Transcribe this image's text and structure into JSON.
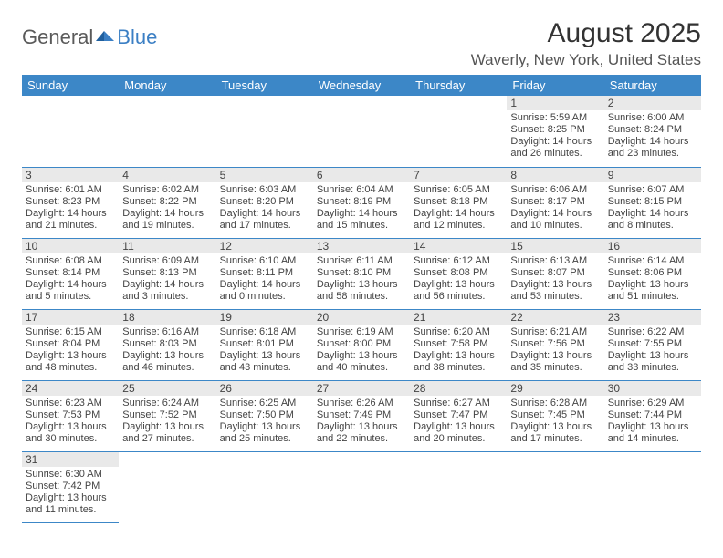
{
  "logo": {
    "text1": "General",
    "text2": "Blue",
    "text1_color": "#5a5a5a",
    "text2_color": "#3b7fc4"
  },
  "title": "August 2025",
  "location": "Waverly, New York, United States",
  "header_bg": "#3c87c7",
  "daynum_bg": "#e9e9e9",
  "border_color": "#3c87c7",
  "day_headers": [
    "Sunday",
    "Monday",
    "Tuesday",
    "Wednesday",
    "Thursday",
    "Friday",
    "Saturday"
  ],
  "weeks": [
    [
      null,
      null,
      null,
      null,
      null,
      {
        "n": "1",
        "sr": "Sunrise: 5:59 AM",
        "ss": "Sunset: 8:25 PM",
        "dl1": "Daylight: 14 hours",
        "dl2": "and 26 minutes."
      },
      {
        "n": "2",
        "sr": "Sunrise: 6:00 AM",
        "ss": "Sunset: 8:24 PM",
        "dl1": "Daylight: 14 hours",
        "dl2": "and 23 minutes."
      }
    ],
    [
      {
        "n": "3",
        "sr": "Sunrise: 6:01 AM",
        "ss": "Sunset: 8:23 PM",
        "dl1": "Daylight: 14 hours",
        "dl2": "and 21 minutes."
      },
      {
        "n": "4",
        "sr": "Sunrise: 6:02 AM",
        "ss": "Sunset: 8:22 PM",
        "dl1": "Daylight: 14 hours",
        "dl2": "and 19 minutes."
      },
      {
        "n": "5",
        "sr": "Sunrise: 6:03 AM",
        "ss": "Sunset: 8:20 PM",
        "dl1": "Daylight: 14 hours",
        "dl2": "and 17 minutes."
      },
      {
        "n": "6",
        "sr": "Sunrise: 6:04 AM",
        "ss": "Sunset: 8:19 PM",
        "dl1": "Daylight: 14 hours",
        "dl2": "and 15 minutes."
      },
      {
        "n": "7",
        "sr": "Sunrise: 6:05 AM",
        "ss": "Sunset: 8:18 PM",
        "dl1": "Daylight: 14 hours",
        "dl2": "and 12 minutes."
      },
      {
        "n": "8",
        "sr": "Sunrise: 6:06 AM",
        "ss": "Sunset: 8:17 PM",
        "dl1": "Daylight: 14 hours",
        "dl2": "and 10 minutes."
      },
      {
        "n": "9",
        "sr": "Sunrise: 6:07 AM",
        "ss": "Sunset: 8:15 PM",
        "dl1": "Daylight: 14 hours",
        "dl2": "and 8 minutes."
      }
    ],
    [
      {
        "n": "10",
        "sr": "Sunrise: 6:08 AM",
        "ss": "Sunset: 8:14 PM",
        "dl1": "Daylight: 14 hours",
        "dl2": "and 5 minutes."
      },
      {
        "n": "11",
        "sr": "Sunrise: 6:09 AM",
        "ss": "Sunset: 8:13 PM",
        "dl1": "Daylight: 14 hours",
        "dl2": "and 3 minutes."
      },
      {
        "n": "12",
        "sr": "Sunrise: 6:10 AM",
        "ss": "Sunset: 8:11 PM",
        "dl1": "Daylight: 14 hours",
        "dl2": "and 0 minutes."
      },
      {
        "n": "13",
        "sr": "Sunrise: 6:11 AM",
        "ss": "Sunset: 8:10 PM",
        "dl1": "Daylight: 13 hours",
        "dl2": "and 58 minutes."
      },
      {
        "n": "14",
        "sr": "Sunrise: 6:12 AM",
        "ss": "Sunset: 8:08 PM",
        "dl1": "Daylight: 13 hours",
        "dl2": "and 56 minutes."
      },
      {
        "n": "15",
        "sr": "Sunrise: 6:13 AM",
        "ss": "Sunset: 8:07 PM",
        "dl1": "Daylight: 13 hours",
        "dl2": "and 53 minutes."
      },
      {
        "n": "16",
        "sr": "Sunrise: 6:14 AM",
        "ss": "Sunset: 8:06 PM",
        "dl1": "Daylight: 13 hours",
        "dl2": "and 51 minutes."
      }
    ],
    [
      {
        "n": "17",
        "sr": "Sunrise: 6:15 AM",
        "ss": "Sunset: 8:04 PM",
        "dl1": "Daylight: 13 hours",
        "dl2": "and 48 minutes."
      },
      {
        "n": "18",
        "sr": "Sunrise: 6:16 AM",
        "ss": "Sunset: 8:03 PM",
        "dl1": "Daylight: 13 hours",
        "dl2": "and 46 minutes."
      },
      {
        "n": "19",
        "sr": "Sunrise: 6:18 AM",
        "ss": "Sunset: 8:01 PM",
        "dl1": "Daylight: 13 hours",
        "dl2": "and 43 minutes."
      },
      {
        "n": "20",
        "sr": "Sunrise: 6:19 AM",
        "ss": "Sunset: 8:00 PM",
        "dl1": "Daylight: 13 hours",
        "dl2": "and 40 minutes."
      },
      {
        "n": "21",
        "sr": "Sunrise: 6:20 AM",
        "ss": "Sunset: 7:58 PM",
        "dl1": "Daylight: 13 hours",
        "dl2": "and 38 minutes."
      },
      {
        "n": "22",
        "sr": "Sunrise: 6:21 AM",
        "ss": "Sunset: 7:56 PM",
        "dl1": "Daylight: 13 hours",
        "dl2": "and 35 minutes."
      },
      {
        "n": "23",
        "sr": "Sunrise: 6:22 AM",
        "ss": "Sunset: 7:55 PM",
        "dl1": "Daylight: 13 hours",
        "dl2": "and 33 minutes."
      }
    ],
    [
      {
        "n": "24",
        "sr": "Sunrise: 6:23 AM",
        "ss": "Sunset: 7:53 PM",
        "dl1": "Daylight: 13 hours",
        "dl2": "and 30 minutes."
      },
      {
        "n": "25",
        "sr": "Sunrise: 6:24 AM",
        "ss": "Sunset: 7:52 PM",
        "dl1": "Daylight: 13 hours",
        "dl2": "and 27 minutes."
      },
      {
        "n": "26",
        "sr": "Sunrise: 6:25 AM",
        "ss": "Sunset: 7:50 PM",
        "dl1": "Daylight: 13 hours",
        "dl2": "and 25 minutes."
      },
      {
        "n": "27",
        "sr": "Sunrise: 6:26 AM",
        "ss": "Sunset: 7:49 PM",
        "dl1": "Daylight: 13 hours",
        "dl2": "and 22 minutes."
      },
      {
        "n": "28",
        "sr": "Sunrise: 6:27 AM",
        "ss": "Sunset: 7:47 PM",
        "dl1": "Daylight: 13 hours",
        "dl2": "and 20 minutes."
      },
      {
        "n": "29",
        "sr": "Sunrise: 6:28 AM",
        "ss": "Sunset: 7:45 PM",
        "dl1": "Daylight: 13 hours",
        "dl2": "and 17 minutes."
      },
      {
        "n": "30",
        "sr": "Sunrise: 6:29 AM",
        "ss": "Sunset: 7:44 PM",
        "dl1": "Daylight: 13 hours",
        "dl2": "and 14 minutes."
      }
    ],
    [
      {
        "n": "31",
        "sr": "Sunrise: 6:30 AM",
        "ss": "Sunset: 7:42 PM",
        "dl1": "Daylight: 13 hours",
        "dl2": "and 11 minutes."
      },
      null,
      null,
      null,
      null,
      null,
      null
    ]
  ]
}
